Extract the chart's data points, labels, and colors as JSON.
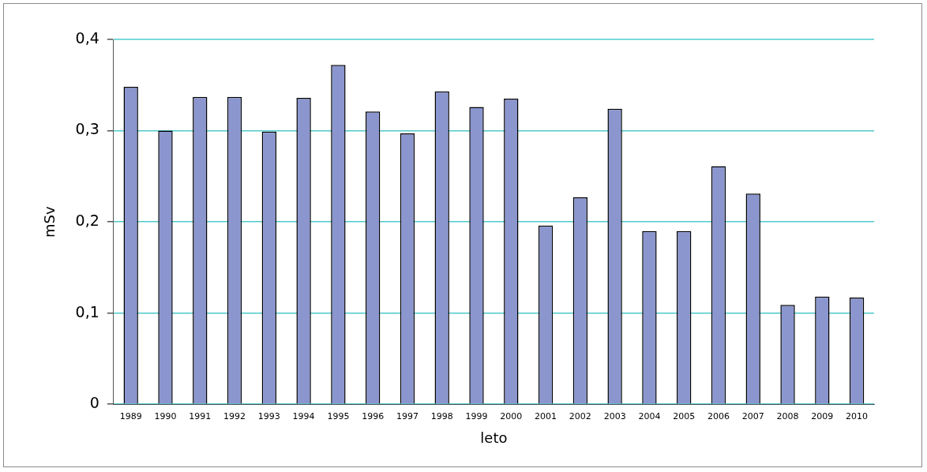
{
  "chart_data": {
    "type": "bar",
    "xlabel": "leto",
    "ylabel": "mSv",
    "categories": [
      "1989",
      "1990",
      "1991",
      "1992",
      "1993",
      "1994",
      "1995",
      "1996",
      "1997",
      "1998",
      "1999",
      "2000",
      "2001",
      "2002",
      "2003",
      "2004",
      "2005",
      "2006",
      "2007",
      "2008",
      "2009",
      "2010"
    ],
    "values": [
      0.348,
      0.3,
      0.337,
      0.337,
      0.299,
      0.336,
      0.372,
      0.321,
      0.297,
      0.343,
      0.326,
      0.335,
      0.196,
      0.227,
      0.324,
      0.19,
      0.19,
      0.261,
      0.231,
      0.109,
      0.118,
      0.117
    ],
    "color": "#8b96cf",
    "ylim": [
      0,
      0.4
    ],
    "yticks": [
      0,
      {
        "value": 0.1,
        "label": "0,1"
      },
      {
        "value": 0.2,
        "label": "0,2"
      },
      {
        "value": 0.3,
        "label": "0,3"
      },
      {
        "value": 0.4,
        "label": "0,4"
      }
    ],
    "grid": "y"
  }
}
